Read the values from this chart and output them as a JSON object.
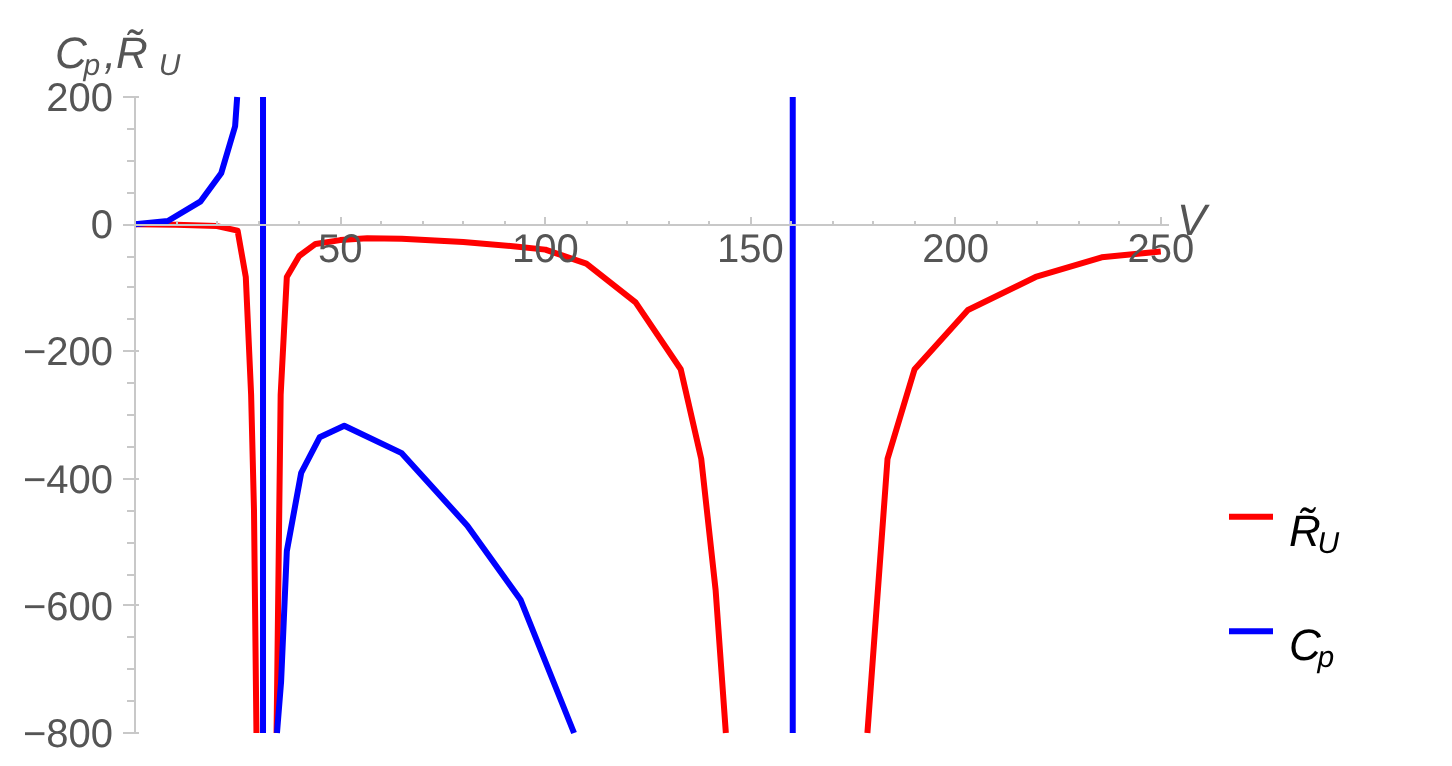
{
  "chart_data": {
    "type": "line",
    "xlabel": "V",
    "ylabel": "C$_{p}$,R̃$_{U}$",
    "xlim": [
      0,
      252
    ],
    "ylim": [
      -800,
      200
    ],
    "xticks": [
      50,
      100,
      150,
      200,
      250
    ],
    "yticks": [
      -800,
      -600,
      -400,
      -200,
      0,
      200
    ],
    "grid": false,
    "legend": "right",
    "series": [
      {
        "name": "R̃$_{U}$",
        "color": "#ff0000",
        "x": [
          0,
          10,
          20,
          25,
          27,
          28.3,
          29,
          29.6,
          32,
          34.5,
          35.5,
          37,
          40,
          44,
          50,
          56.6,
          65,
          80,
          92.7,
          100,
          110,
          122,
          133,
          138,
          141.5,
          144,
          160,
          178.5,
          183.4,
          190,
          203,
          219.5,
          235.6,
          250
        ],
        "values": [
          0,
          -1,
          -3,
          -10,
          -83,
          -268,
          -450,
          -800,
          null,
          -800,
          -268,
          -83,
          -50,
          -31,
          -25,
          -22,
          -23,
          -28,
          -35,
          -40,
          -62,
          -123,
          -228,
          -369,
          -575,
          -800,
          null,
          -800,
          -369,
          -228,
          -135,
          -83,
          -52,
          -43
        ]
      },
      {
        "name": "C$_{p}$",
        "color": "#0000ff",
        "x": [
          0,
          8,
          16,
          21,
          24.4,
          24.9,
          28,
          31.2,
          31.2,
          33,
          34.6,
          35.6,
          37,
          40.5,
          45,
          51,
          65,
          81,
          94,
          107,
          130,
          160.3,
          160.3
        ],
        "values": [
          0,
          5,
          36,
          80,
          154,
          200,
          null,
          200,
          -800,
          null,
          -800,
          -720,
          -514,
          -391,
          -335,
          -317,
          -360,
          -474,
          -591,
          -800,
          null,
          200,
          -800
        ]
      }
    ]
  }
}
